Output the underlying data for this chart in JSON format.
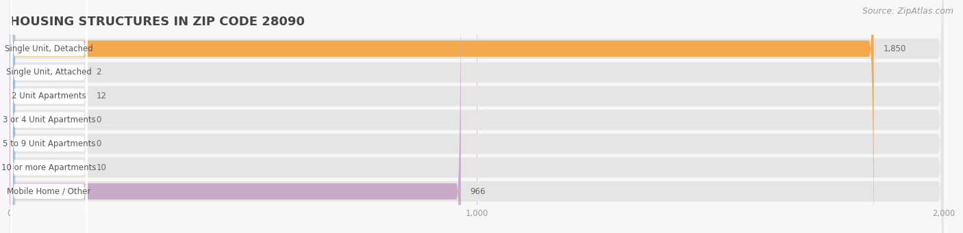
{
  "title": "HOUSING STRUCTURES IN ZIP CODE 28090",
  "source": "Source: ZipAtlas.com",
  "categories": [
    "Single Unit, Detached",
    "Single Unit, Attached",
    "2 Unit Apartments",
    "3 or 4 Unit Apartments",
    "5 to 9 Unit Apartments",
    "10 or more Apartments",
    "Mobile Home / Other"
  ],
  "values": [
    1850,
    2,
    12,
    0,
    0,
    10,
    966
  ],
  "bar_colors": [
    "#f5a94e",
    "#f0928e",
    "#9bbfdd",
    "#9bbfdd",
    "#9bbfdd",
    "#9bbfdd",
    "#c9a8c9"
  ],
  "xlim": [
    0,
    2000
  ],
  "xticks": [
    0,
    1000,
    2000
  ],
  "bg_color": "#f7f7f7",
  "bar_bg_color": "#e5e5e5",
  "title_fontsize": 13,
  "source_fontsize": 9,
  "label_fontsize": 8.5,
  "value_fontsize": 8.5
}
